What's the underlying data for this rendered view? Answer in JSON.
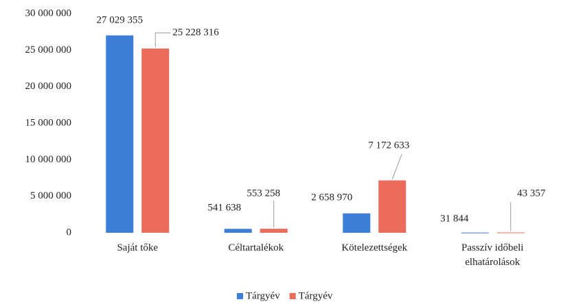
{
  "chart_data": {
    "type": "bar",
    "categories": [
      "Saját tőke",
      "Céltartalékok",
      "Kötelezettségek",
      "Passzív időbeli elhatárolások"
    ],
    "series": [
      {
        "name": "Tárgyév",
        "color": "#3b7fd9",
        "values": [
          27029355,
          541638,
          2658970,
          31844
        ],
        "value_labels": [
          "27 029 355",
          "541 638",
          "2 658 970",
          "31 844"
        ]
      },
      {
        "name": "Tárgyév",
        "color": "#ea6b5c",
        "values": [
          25228316,
          553258,
          7172633,
          43357
        ],
        "value_labels": [
          "25 228 316",
          "553 258",
          "7 172 633",
          "43 357"
        ]
      }
    ],
    "ylim": [
      0,
      30000000
    ],
    "yticks": [
      {
        "value": 0,
        "label": "0"
      },
      {
        "value": 5000000,
        "label": "5 000 000"
      },
      {
        "value": 10000000,
        "label": "10 000 000"
      },
      {
        "value": 15000000,
        "label": "15 000 000"
      },
      {
        "value": 20000000,
        "label": "20 000 000"
      },
      {
        "value": 25000000,
        "label": "25 000 000"
      },
      {
        "value": 30000000,
        "label": "30 000 000"
      }
    ],
    "grid": false,
    "legend": "bottom"
  }
}
